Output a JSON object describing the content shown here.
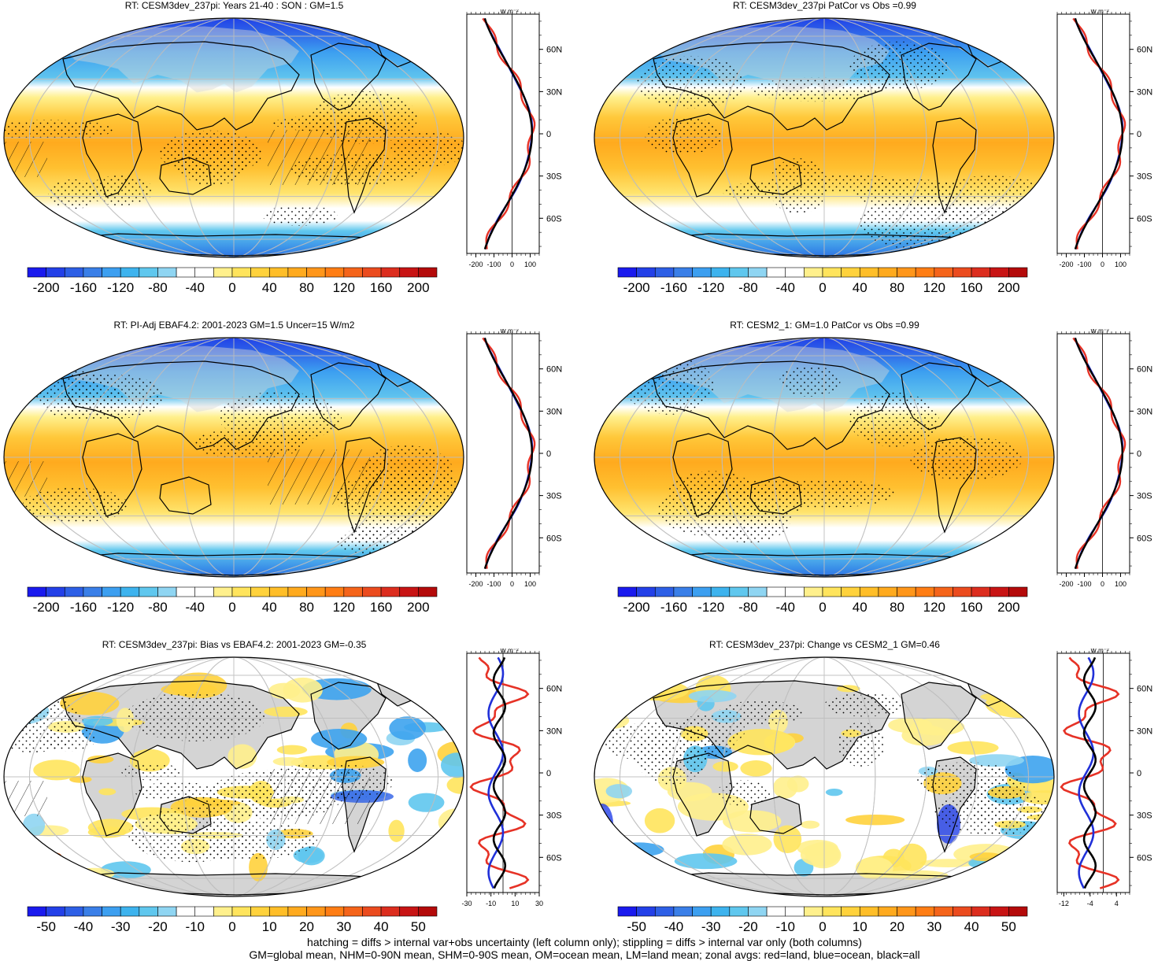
{
  "footer": {
    "line1": "hatching = diffs > internal var+obs uncertainty (left column only); stippling = diffs > internal var only (both columns)",
    "line2": "GM=global mean, NHM=0-90N mean, SHM=0-90S mean, OM=ocean mean, LM=land mean; zonal avgs: red=land, blue=ocean, black=all"
  },
  "lat_labels": [
    "60N",
    "30N",
    "0",
    "30S",
    "60S"
  ],
  "unit_label": "W m⁻²",
  "colors": {
    "land": "#e63226",
    "ocean": "#2030d8",
    "all": "#000000",
    "land_mask": "#d4d4d4",
    "graticule": "#bdbdbd"
  },
  "scale_full": {
    "ticks": [
      "-200",
      "-160",
      "-120",
      "-80",
      "-40",
      "0",
      "40",
      "80",
      "120",
      "160",
      "200"
    ],
    "colors": [
      "#1a1aee",
      "#2340e8",
      "#2d5fe6",
      "#3a7fe8",
      "#3c9ff0",
      "#3db3ee",
      "#5fc7ee",
      "#8fd5f2",
      "#ffffff",
      "#ffffff",
      "#fff08c",
      "#ffe45c",
      "#ffd23c",
      "#ffbe28",
      "#ffaa1e",
      "#ff961a",
      "#ff7d14",
      "#f5641a",
      "#eb4b1e",
      "#dc2d1e",
      "#c81414",
      "#b40a0a"
    ]
  },
  "scale_diff": {
    "ticks": [
      "-50",
      "-40",
      "-30",
      "-20",
      "-10",
      "0",
      "10",
      "20",
      "30",
      "40",
      "50"
    ],
    "colors": [
      "#1a1aee",
      "#2340e8",
      "#2d5fe6",
      "#3a7fe8",
      "#3c9ff0",
      "#3db3ee",
      "#5fc7ee",
      "#8fd5f2",
      "#ffffff",
      "#ffffff",
      "#fff08c",
      "#ffe45c",
      "#ffd23c",
      "#ffbe28",
      "#ffaa1e",
      "#ff961a",
      "#ff7d14",
      "#f5641a",
      "#eb4b1e",
      "#dc2d1e",
      "#c81414",
      "#b40a0a"
    ]
  },
  "panels": [
    {
      "id": "p1",
      "title": "RT: CESM3dev_237pi: Years 21-40 : SON : GM=1.5",
      "type": "full",
      "hatch": true,
      "x_ticks": [
        "-200",
        "-100",
        "0",
        "100"
      ],
      "x_range": [
        -250,
        150
      ]
    },
    {
      "id": "p2",
      "title": "RT: CESM3dev_237pi PatCor vs Obs =0.99",
      "type": "full",
      "hatch": false,
      "x_ticks": [
        "-200",
        "-100",
        "0",
        "100"
      ],
      "x_range": [
        -250,
        150
      ]
    },
    {
      "id": "p3",
      "title": "RT: PI-Adj EBAF4.2: 2001-2023 GM=1.5 Uncer=15 W/m2",
      "type": "full",
      "hatch": true,
      "x_ticks": [
        "-200",
        "-100",
        "0",
        "100"
      ],
      "x_range": [
        -250,
        150
      ]
    },
    {
      "id": "p4",
      "title": "RT: CESM2_1: GM=1.0 PatCor vs Obs =0.99",
      "type": "full",
      "hatch": false,
      "x_ticks": [
        "-200",
        "-100",
        "0",
        "100"
      ],
      "x_range": [
        -250,
        150
      ]
    },
    {
      "id": "p5",
      "title": "RT: CESM3dev_237pi: Bias vs EBAF4.2: 2001-2023  GM=-0.35",
      "type": "diff",
      "hatch": true,
      "x_ticks": [
        "-30",
        "-10",
        "10",
        "30"
      ],
      "x_range": [
        -30,
        30
      ]
    },
    {
      "id": "p6",
      "title": "RT: CESM3dev_237pi: Change vs CESM2_1 GM=0.46",
      "type": "diff",
      "hatch": false,
      "x_ticks": [
        "-12",
        "-4",
        "4"
      ],
      "x_range": [
        -14,
        8
      ]
    }
  ]
}
